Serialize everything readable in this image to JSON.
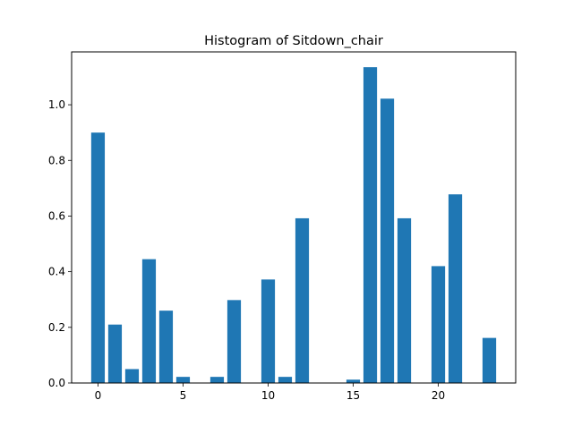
{
  "chart_data": {
    "type": "bar",
    "title": "Histogram of Sitdown_chair",
    "xlabel": "",
    "ylabel": "",
    "x": [
      0,
      1,
      2,
      3,
      4,
      5,
      6,
      7,
      8,
      9,
      10,
      11,
      12,
      13,
      14,
      15,
      16,
      17,
      18,
      19,
      20,
      21,
      22,
      23
    ],
    "values": [
      0.9,
      0.21,
      0.05,
      0.445,
      0.26,
      0.022,
      0,
      0.022,
      0.298,
      0,
      0.372,
      0.022,
      0.592,
      0,
      0,
      0.012,
      1.135,
      1.022,
      0.592,
      0,
      0.42,
      0.678,
      0,
      0.162
    ],
    "xlim": [
      -1.55,
      24.55
    ],
    "ylim": [
      0,
      1.19
    ],
    "xticks": [
      0,
      5,
      10,
      15,
      20
    ],
    "xtick_labels": [
      "0",
      "5",
      "10",
      "15",
      "20"
    ],
    "yticks": [
      0,
      0.2,
      0.4,
      0.6,
      0.8,
      1.0
    ],
    "ytick_labels": [
      "0.0",
      "0.2",
      "0.4",
      "0.6",
      "0.8",
      "1.0"
    ],
    "bar_color": "#1f77b4",
    "grid": false,
    "legend": "none"
  }
}
